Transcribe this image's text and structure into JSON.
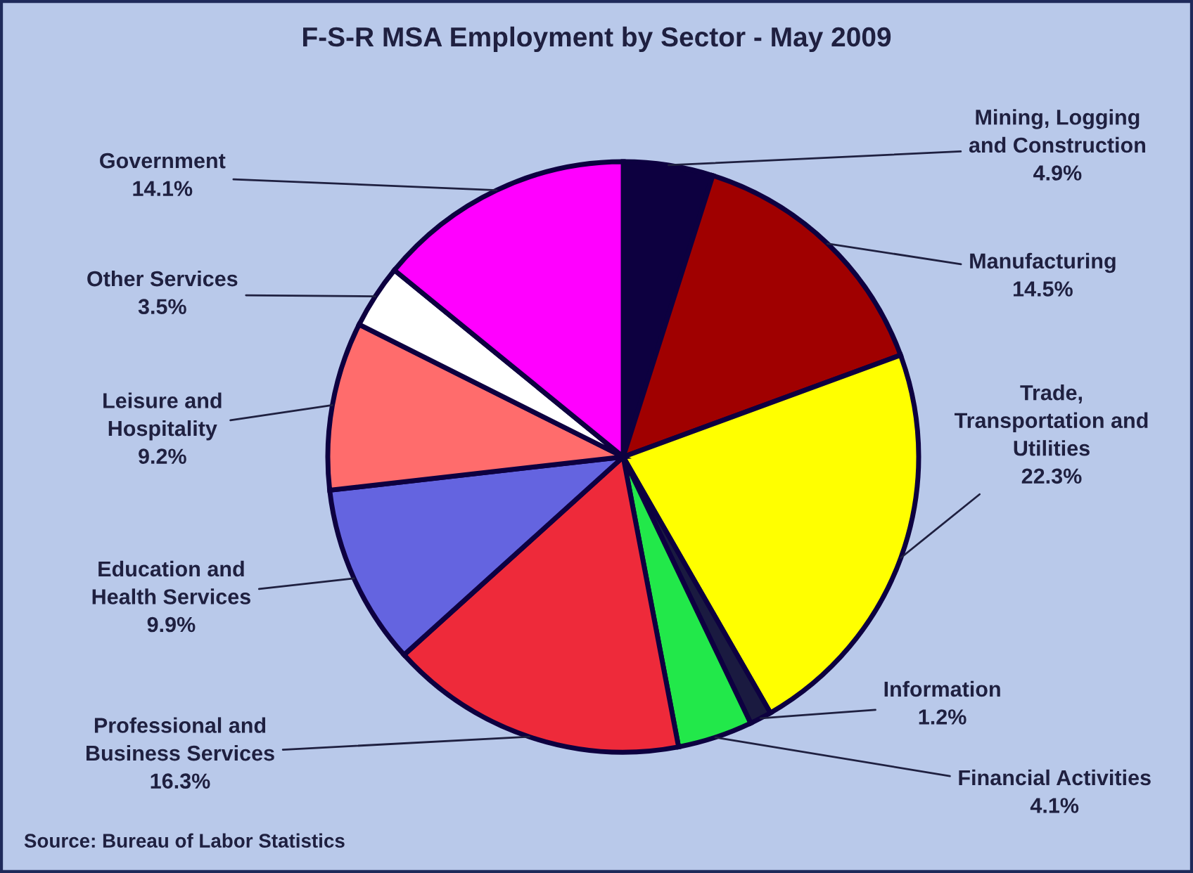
{
  "chart_data": {
    "type": "pie",
    "title": "F-S-R MSA Employment by Sector - May 2009",
    "categories": [
      "Mining, Logging\nand Construction",
      "Manufacturing",
      "Trade,\nTransportation and\nUtilities",
      "Information",
      "Financial Activities",
      "Professional and\nBusiness Services",
      "Education and\nHealth Services",
      "Leisure and\nHospitality",
      "Other Services",
      "Government"
    ],
    "values": [
      4.9,
      14.5,
      22.3,
      1.2,
      4.1,
      16.3,
      9.9,
      9.2,
      3.5,
      14.1
    ],
    "colors": [
      "#0d0040",
      "#a00000",
      "#ffff00",
      "#1a1a40",
      "#22e84a",
      "#ee2a3a",
      "#6464e0",
      "#ff6c6c",
      "#ffffff",
      "#ff00ff"
    ],
    "value_labels": [
      "4.9%",
      "14.5%",
      "22.3%",
      "1.2%",
      "4.1%",
      "16.3%",
      "9.9%",
      "9.2%",
      "3.5%",
      "14.1%"
    ],
    "annotations": [
      "Source: Bureau of Labor Statistics"
    ]
  }
}
